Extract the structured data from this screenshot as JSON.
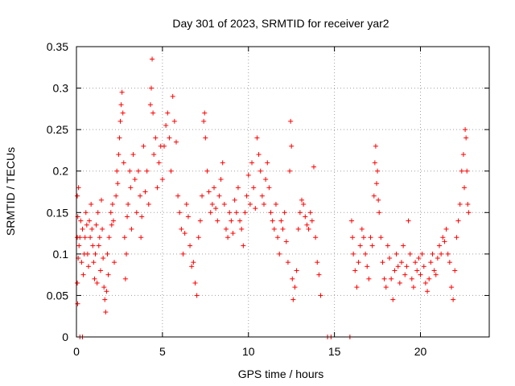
{
  "chart_data": {
    "type": "scatter",
    "title": "Day 301 of 2023, SRMTID for receiver yar2",
    "xlabel": "GPS time / hours",
    "ylabel": "SRMTID / TECUs",
    "xlim": [
      0,
      24
    ],
    "ylim": [
      0,
      0.35
    ],
    "xticks": [
      0,
      5,
      10,
      15,
      20
    ],
    "yticks": [
      0,
      0.05,
      0.1,
      0.15,
      0.2,
      0.25,
      0.3,
      0.35
    ],
    "xtick_labels": [
      "0",
      "5",
      "10",
      "15",
      "20"
    ],
    "ytick_labels": [
      "0",
      "0.05",
      "0.1",
      "0.15",
      "0.2",
      "0.25",
      "0.3",
      "0.35"
    ],
    "grid": true,
    "marker": "+",
    "series": [
      {
        "name": "SRMTID",
        "color": "#ff0000",
        "points": [
          [
            0.05,
            0.17
          ],
          [
            0.05,
            0.12
          ],
          [
            0.05,
            0.065
          ],
          [
            0.07,
            0.04
          ],
          [
            0.08,
            0.145
          ],
          [
            0.1,
            0.095
          ],
          [
            0.12,
            0.18
          ],
          [
            0.15,
            0.11
          ],
          [
            0.2,
            0.12
          ],
          [
            0.25,
            0.14
          ],
          [
            0.3,
            0.09
          ],
          [
            0.35,
            0.13
          ],
          [
            0.4,
            0.075
          ],
          [
            0.45,
            0.1
          ],
          [
            0.5,
            0.12
          ],
          [
            0.55,
            0.15
          ],
          [
            0.6,
            0.135
          ],
          [
            0.65,
            0.1
          ],
          [
            0.7,
            0.085
          ],
          [
            0.75,
            0.14
          ],
          [
            0.8,
            0.12
          ],
          [
            0.85,
            0.16
          ],
          [
            0.9,
            0.13
          ],
          [
            0.95,
            0.11
          ],
          [
            1.0,
            0.09
          ],
          [
            1.05,
            0.07
          ],
          [
            1.1,
            0.1
          ],
          [
            1.15,
            0.135
          ],
          [
            1.2,
            0.065
          ],
          [
            1.25,
            0.15
          ],
          [
            1.3,
            0.11
          ],
          [
            1.35,
            0.12
          ],
          [
            1.4,
            0.08
          ],
          [
            1.45,
            0.165
          ],
          [
            1.5,
            0.13
          ],
          [
            1.55,
            0.095
          ],
          [
            1.6,
            0.06
          ],
          [
            1.65,
            0.045
          ],
          [
            1.7,
            0.03
          ],
          [
            1.75,
            0.055
          ],
          [
            1.8,
            0.1
          ],
          [
            1.85,
            0.075
          ],
          [
            1.9,
            0.12
          ],
          [
            2.0,
            0.15
          ],
          [
            2.05,
            0.135
          ],
          [
            2.1,
            0.16
          ],
          [
            2.15,
            0.14
          ],
          [
            2.2,
            0.09
          ],
          [
            2.3,
            0.17
          ],
          [
            2.35,
            0.2
          ],
          [
            2.4,
            0.185
          ],
          [
            2.45,
            0.22
          ],
          [
            2.5,
            0.24
          ],
          [
            2.55,
            0.26
          ],
          [
            2.6,
            0.28
          ],
          [
            2.65,
            0.295
          ],
          [
            2.7,
            0.27
          ],
          [
            2.75,
            0.21
          ],
          [
            2.8,
            0.12
          ],
          [
            2.85,
            0.07
          ],
          [
            2.9,
            0.1
          ],
          [
            2.95,
            0.145
          ],
          [
            3.0,
            0.16
          ],
          [
            3.1,
            0.2
          ],
          [
            3.15,
            0.18
          ],
          [
            3.2,
            0.13
          ],
          [
            3.3,
            0.22
          ],
          [
            3.4,
            0.19
          ],
          [
            3.5,
            0.15
          ],
          [
            3.6,
            0.2
          ],
          [
            3.7,
            0.17
          ],
          [
            3.75,
            0.12
          ],
          [
            3.8,
            0.145
          ],
          [
            3.9,
            0.23
          ],
          [
            4.0,
            0.175
          ],
          [
            4.1,
            0.2
          ],
          [
            4.2,
            0.16
          ],
          [
            4.3,
            0.28
          ],
          [
            4.35,
            0.3
          ],
          [
            4.4,
            0.335
          ],
          [
            4.45,
            0.27
          ],
          [
            4.5,
            0.22
          ],
          [
            4.6,
            0.24
          ],
          [
            4.7,
            0.18
          ],
          [
            4.8,
            0.21
          ],
          [
            4.9,
            0.23
          ],
          [
            5.0,
            0.19
          ],
          [
            5.1,
            0.23
          ],
          [
            5.2,
            0.255
          ],
          [
            5.3,
            0.27
          ],
          [
            5.4,
            0.24
          ],
          [
            5.5,
            0.2
          ],
          [
            5.6,
            0.29
          ],
          [
            5.7,
            0.26
          ],
          [
            5.8,
            0.235
          ],
          [
            5.9,
            0.17
          ],
          [
            6.0,
            0.15
          ],
          [
            6.1,
            0.13
          ],
          [
            6.2,
            0.1
          ],
          [
            6.3,
            0.125
          ],
          [
            6.4,
            0.16
          ],
          [
            6.5,
            0.145
          ],
          [
            6.6,
            0.11
          ],
          [
            6.7,
            0.085
          ],
          [
            6.8,
            0.09
          ],
          [
            6.9,
            0.065
          ],
          [
            7.0,
            0.05
          ],
          [
            7.1,
            0.12
          ],
          [
            7.2,
            0.14
          ],
          [
            7.3,
            0.17
          ],
          [
            7.4,
            0.26
          ],
          [
            7.45,
            0.27
          ],
          [
            7.5,
            0.24
          ],
          [
            7.6,
            0.2
          ],
          [
            7.7,
            0.175
          ],
          [
            7.8,
            0.15
          ],
          [
            7.9,
            0.16
          ],
          [
            8.0,
            0.18
          ],
          [
            8.1,
            0.155
          ],
          [
            8.2,
            0.14
          ],
          [
            8.3,
            0.17
          ],
          [
            8.4,
            0.19
          ],
          [
            8.5,
            0.21
          ],
          [
            8.6,
            0.16
          ],
          [
            8.7,
            0.13
          ],
          [
            8.8,
            0.12
          ],
          [
            8.9,
            0.15
          ],
          [
            9.0,
            0.14
          ],
          [
            9.1,
            0.125
          ],
          [
            9.2,
            0.165
          ],
          [
            9.3,
            0.15
          ],
          [
            9.4,
            0.18
          ],
          [
            9.5,
            0.14
          ],
          [
            9.6,
            0.13
          ],
          [
            9.7,
            0.11
          ],
          [
            9.8,
            0.15
          ],
          [
            9.9,
            0.17
          ],
          [
            10.0,
            0.195
          ],
          [
            10.1,
            0.16
          ],
          [
            10.2,
            0.21
          ],
          [
            10.3,
            0.18
          ],
          [
            10.4,
            0.155
          ],
          [
            10.5,
            0.24
          ],
          [
            10.6,
            0.22
          ],
          [
            10.7,
            0.2
          ],
          [
            10.8,
            0.17
          ],
          [
            10.9,
            0.16
          ],
          [
            11.0,
            0.19
          ],
          [
            11.1,
            0.21
          ],
          [
            11.2,
            0.18
          ],
          [
            11.3,
            0.15
          ],
          [
            11.4,
            0.14
          ],
          [
            11.5,
            0.13
          ],
          [
            11.6,
            0.16
          ],
          [
            11.7,
            0.12
          ],
          [
            11.8,
            0.1
          ],
          [
            11.9,
            0.14
          ],
          [
            12.0,
            0.13
          ],
          [
            12.1,
            0.15
          ],
          [
            12.2,
            0.115
          ],
          [
            12.3,
            0.09
          ],
          [
            12.4,
            0.2
          ],
          [
            12.45,
            0.26
          ],
          [
            12.5,
            0.23
          ],
          [
            12.55,
            0.07
          ],
          [
            12.6,
            0.045
          ],
          [
            12.7,
            0.06
          ],
          [
            12.8,
            0.08
          ],
          [
            12.9,
            0.13
          ],
          [
            13.0,
            0.15
          ],
          [
            13.1,
            0.165
          ],
          [
            13.2,
            0.16
          ],
          [
            13.3,
            0.145
          ],
          [
            13.4,
            0.135
          ],
          [
            13.5,
            0.13
          ],
          [
            13.6,
            0.15
          ],
          [
            13.7,
            0.14
          ],
          [
            13.8,
            0.205
          ],
          [
            13.9,
            0.12
          ],
          [
            14.0,
            0.09
          ],
          [
            14.1,
            0.075
          ],
          [
            14.2,
            0.05
          ],
          [
            16.0,
            0.14
          ],
          [
            16.05,
            0.12
          ],
          [
            16.1,
            0.1
          ],
          [
            16.2,
            0.08
          ],
          [
            16.3,
            0.06
          ],
          [
            16.4,
            0.09
          ],
          [
            16.5,
            0.11
          ],
          [
            16.6,
            0.13
          ],
          [
            16.7,
            0.12
          ],
          [
            16.8,
            0.1
          ],
          [
            16.9,
            0.085
          ],
          [
            17.0,
            0.07
          ],
          [
            17.1,
            0.12
          ],
          [
            17.2,
            0.11
          ],
          [
            17.3,
            0.17
          ],
          [
            17.35,
            0.21
          ],
          [
            17.4,
            0.23
          ],
          [
            17.45,
            0.185
          ],
          [
            17.5,
            0.2
          ],
          [
            17.55,
            0.165
          ],
          [
            17.6,
            0.15
          ],
          [
            17.7,
            0.12
          ],
          [
            17.8,
            0.09
          ],
          [
            17.9,
            0.07
          ],
          [
            18.0,
            0.06
          ],
          [
            18.1,
            0.11
          ],
          [
            18.2,
            0.095
          ],
          [
            18.3,
            0.07
          ],
          [
            18.4,
            0.045
          ],
          [
            18.5,
            0.08
          ],
          [
            18.6,
            0.1
          ],
          [
            18.7,
            0.085
          ],
          [
            18.8,
            0.065
          ],
          [
            18.9,
            0.09
          ],
          [
            19.0,
            0.11
          ],
          [
            19.1,
            0.075
          ],
          [
            19.2,
            0.085
          ],
          [
            19.3,
            0.14
          ],
          [
            19.4,
            0.1
          ],
          [
            19.5,
            0.07
          ],
          [
            19.6,
            0.06
          ],
          [
            19.7,
            0.09
          ],
          [
            19.8,
            0.08
          ],
          [
            19.9,
            0.095
          ],
          [
            20.0,
            0.075
          ],
          [
            20.1,
            0.1
          ],
          [
            20.2,
            0.085
          ],
          [
            20.3,
            0.065
          ],
          [
            20.4,
            0.055
          ],
          [
            20.5,
            0.07
          ],
          [
            20.6,
            0.09
          ],
          [
            20.7,
            0.1
          ],
          [
            20.8,
            0.08
          ],
          [
            20.9,
            0.075
          ],
          [
            21.0,
            0.095
          ],
          [
            21.1,
            0.11
          ],
          [
            21.2,
            0.1
          ],
          [
            21.3,
            0.12
          ],
          [
            21.4,
            0.115
          ],
          [
            21.5,
            0.13
          ],
          [
            21.6,
            0.1
          ],
          [
            21.7,
            0.09
          ],
          [
            21.8,
            0.06
          ],
          [
            21.9,
            0.045
          ],
          [
            22.0,
            0.08
          ],
          [
            22.1,
            0.12
          ],
          [
            22.2,
            0.14
          ],
          [
            22.3,
            0.16
          ],
          [
            22.4,
            0.2
          ],
          [
            22.5,
            0.22
          ],
          [
            22.55,
            0.18
          ],
          [
            22.6,
            0.25
          ],
          [
            22.65,
            0.24
          ],
          [
            22.7,
            0.2
          ],
          [
            22.75,
            0.16
          ],
          [
            22.8,
            0.15
          ]
        ],
        "zeros": [
          0.2,
          0.35,
          14.6,
          14.8,
          15.9
        ]
      }
    ]
  }
}
